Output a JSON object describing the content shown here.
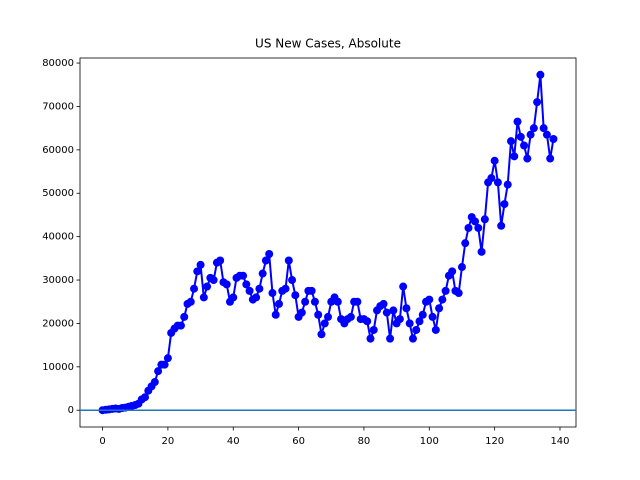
{
  "chart_data": {
    "type": "line",
    "title": "US New Cases, Absolute",
    "x": [
      0,
      1,
      2,
      3,
      4,
      5,
      6,
      7,
      8,
      9,
      10,
      11,
      12,
      13,
      14,
      15,
      16,
      17,
      18,
      19,
      20,
      21,
      22,
      23,
      24,
      25,
      26,
      27,
      28,
      29,
      30,
      31,
      32,
      33,
      34,
      35,
      36,
      37,
      38,
      39,
      40,
      41,
      42,
      43,
      44,
      45,
      46,
      47,
      48,
      49,
      50,
      51,
      52,
      53,
      54,
      55,
      56,
      57,
      58,
      59,
      60,
      61,
      62,
      63,
      64,
      65,
      66,
      67,
      68,
      69,
      70,
      71,
      72,
      73,
      74,
      75,
      76,
      77,
      78,
      79,
      80,
      81,
      82,
      83,
      84,
      85,
      86,
      87,
      88,
      89,
      90,
      91,
      92,
      93,
      94,
      95,
      96,
      97,
      98,
      99,
      100,
      101,
      102,
      103,
      104,
      105,
      106,
      107,
      108,
      109,
      110,
      111,
      112,
      113,
      114,
      115,
      116,
      117,
      118,
      119,
      120,
      121,
      122,
      123,
      124,
      125,
      126,
      127,
      128,
      129,
      130,
      131,
      132,
      133,
      134,
      135,
      136,
      137,
      138
    ],
    "series": [
      {
        "color": "#0000ff",
        "values": [
          0,
          100,
          200,
          300,
          400,
          300,
          500,
          600,
          800,
          1000,
          1200,
          1500,
          2500,
          3000,
          4500,
          5500,
          6500,
          9000,
          10500,
          10500,
          12000,
          17800,
          18800,
          19500,
          19500,
          21500,
          24500,
          25000,
          28000,
          32000,
          33500,
          26000,
          28500,
          30500,
          30000,
          34000,
          34500,
          29500,
          29000,
          25000,
          26000,
          30500,
          31000,
          31000,
          29000,
          27500,
          25500,
          26000,
          28000,
          31500,
          34500,
          36000,
          27000,
          22000,
          24500,
          27500,
          28000,
          34500,
          30000,
          26500,
          21500,
          22500,
          25000,
          27500,
          27500,
          25000,
          22000,
          17500,
          20000,
          21500,
          25000,
          26000,
          25000,
          21000,
          20000,
          21000,
          21500,
          25000,
          25000,
          21000,
          21000,
          20500,
          16500,
          18500,
          23000,
          24000,
          24500,
          22500,
          16500,
          23000,
          20000,
          21000,
          28500,
          23500,
          20000,
          16500,
          18500,
          20500,
          22000,
          25000,
          25500,
          21500,
          18500,
          23500,
          25500,
          27500,
          31000,
          32000,
          27500,
          27000,
          33000,
          38500,
          42000,
          44500,
          43500,
          42000,
          36500,
          44000,
          52500,
          53500,
          57500,
          52500,
          42500,
          47500,
          52000,
          62000,
          58500,
          66500,
          63000,
          61000,
          58000,
          63500,
          65000,
          71000,
          77300,
          65000,
          63500,
          58000,
          62500
        ]
      }
    ],
    "hline": {
      "value": 0,
      "color": "#1f77b4"
    },
    "xlim": [
      -6.9,
      144.9
    ],
    "ylim": [
      -3865,
      81165
    ],
    "xticks": [
      0,
      20,
      40,
      60,
      80,
      100,
      120,
      140
    ],
    "yticks": [
      0,
      10000,
      20000,
      30000,
      40000,
      50000,
      60000,
      70000,
      80000
    ]
  }
}
